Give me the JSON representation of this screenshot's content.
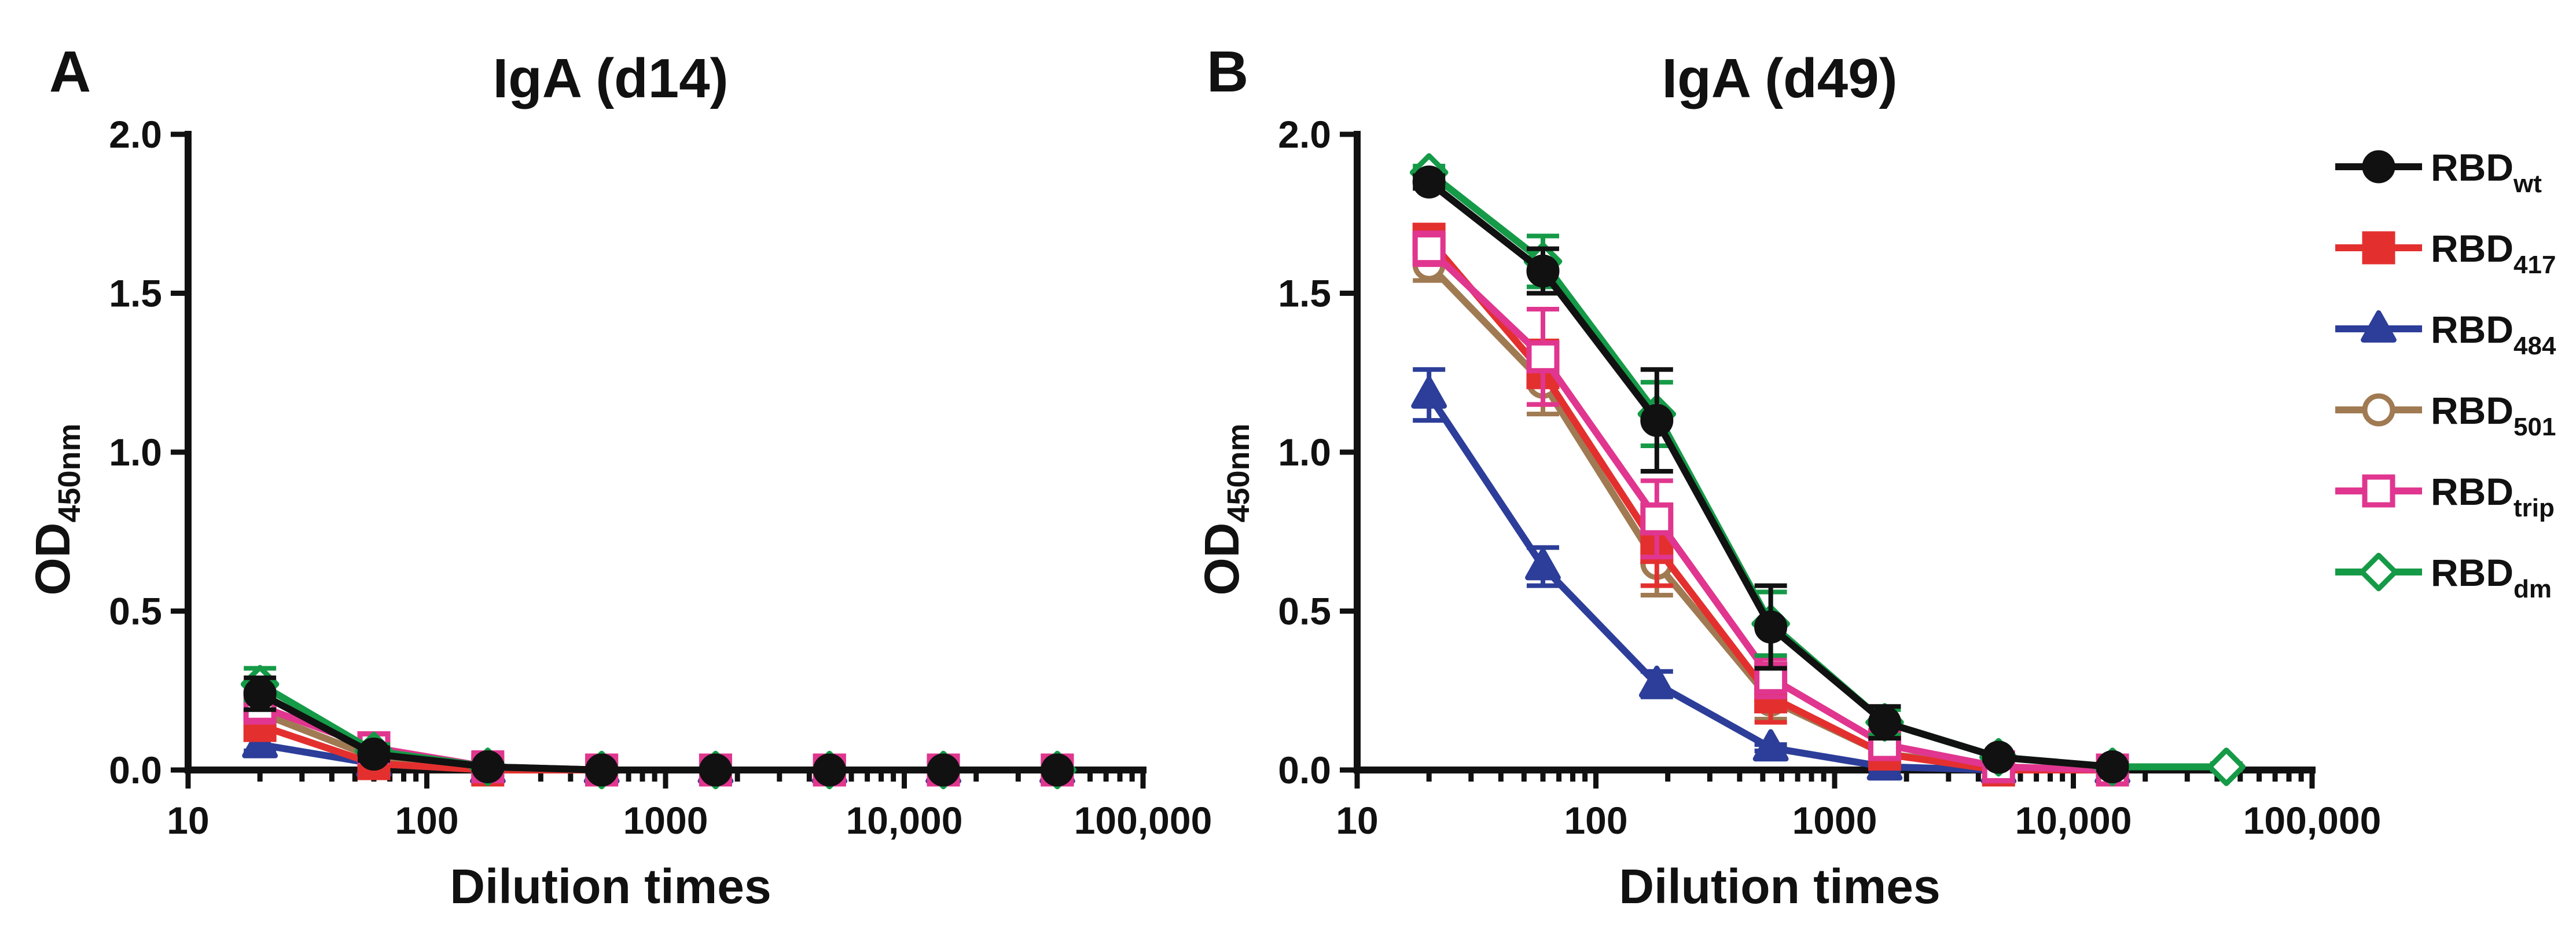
{
  "colors": {
    "RBD_wt": "#111111",
    "RBD_417": "#e3302f",
    "RBD_484": "#2c3e99",
    "RBD_501": "#a07a52",
    "RBD_trip": "#e0368f",
    "RBD_dm": "#159a47"
  },
  "legend": [
    {
      "key": "RBD_wt",
      "base": "RBD",
      "sub": "wt",
      "marker": "circle",
      "filled": true
    },
    {
      "key": "RBD_417",
      "base": "RBD",
      "sub": "417",
      "marker": "square",
      "filled": true
    },
    {
      "key": "RBD_484",
      "base": "RBD",
      "sub": "484",
      "marker": "triangle",
      "filled": true
    },
    {
      "key": "RBD_501",
      "base": "RBD",
      "sub": "501",
      "marker": "circle",
      "filled": false
    },
    {
      "key": "RBD_trip",
      "base": "RBD",
      "sub": "trip",
      "marker": "square",
      "filled": false
    },
    {
      "key": "RBD_dm",
      "base": "RBD",
      "sub": "dm",
      "marker": "diamond",
      "filled": false
    }
  ],
  "chart_data": [
    {
      "panel": "A",
      "type": "line",
      "title": "IgA (d14)",
      "xlabel": "Dilution times",
      "ylabel": {
        "base": "OD",
        "sub": "450nm"
      },
      "xscale": "log",
      "xlim": [
        10,
        100000
      ],
      "ylim": [
        0,
        2.0
      ],
      "xticks": [
        10,
        100,
        1000,
        10000,
        100000
      ],
      "xtick_labels": [
        "10",
        "100",
        "1000",
        "10,000",
        "100,000"
      ],
      "yticks": [
        0,
        0.5,
        1.0,
        1.5,
        2.0
      ],
      "ytick_labels": [
        "0.0",
        "0.5",
        "1.0",
        "1.5",
        "2.0"
      ],
      "series": [
        {
          "key": "RBD_484",
          "x": [
            20,
            60,
            180,
            540,
            1620,
            4860,
            14580,
            43740
          ],
          "y": [
            0.08,
            0.02,
            0.0,
            0.0,
            0.0,
            0.0,
            0.0,
            0.0
          ],
          "err": [
            0.02,
            0.01,
            0,
            0,
            0,
            0,
            0,
            0
          ]
        },
        {
          "key": "RBD_501",
          "x": [
            20,
            60,
            180,
            540,
            1620,
            4860,
            14580,
            43740
          ],
          "y": [
            0.18,
            0.04,
            0.0,
            0.0,
            0.0,
            0.0,
            0.0,
            0.0
          ],
          "err": [
            0.04,
            0.02,
            0.01,
            0,
            0,
            0.01,
            0,
            0.01
          ]
        },
        {
          "key": "RBD_417",
          "x": [
            20,
            60,
            180,
            540,
            1620,
            4860,
            14580,
            43740
          ],
          "y": [
            0.14,
            0.02,
            0.0,
            0.0,
            0.0,
            0.0,
            0.0,
            0.0
          ],
          "err": [
            0.03,
            0.01,
            0,
            0,
            0,
            0,
            0,
            0
          ]
        },
        {
          "key": "RBD_trip",
          "x": [
            20,
            60,
            180,
            540,
            1620,
            4860,
            14580,
            43740
          ],
          "y": [
            0.2,
            0.07,
            0.01,
            0.0,
            0.0,
            0.0,
            0.0,
            0.0
          ],
          "err": [
            0.05,
            0.02,
            0.01,
            0,
            0,
            0,
            0,
            0.01
          ]
        },
        {
          "key": "RBD_dm",
          "x": [
            20,
            60,
            180,
            540,
            1620,
            4860,
            14580,
            43740
          ],
          "y": [
            0.27,
            0.06,
            0.01,
            0.0,
            0.0,
            0.0,
            0.0,
            0.0
          ],
          "err": [
            0.05,
            0.02,
            0.01,
            0,
            0,
            0,
            0,
            0
          ]
        },
        {
          "key": "RBD_wt",
          "x": [
            20,
            60,
            180,
            540,
            1620,
            4860,
            14580,
            43740
          ],
          "y": [
            0.24,
            0.05,
            0.01,
            0.0,
            0.0,
            0.0,
            0.0,
            0.0
          ],
          "err": [
            0.05,
            0.02,
            0.01,
            0,
            0,
            0,
            0,
            0
          ]
        }
      ]
    },
    {
      "panel": "B",
      "type": "line",
      "title": "IgA (d49)",
      "xlabel": "Dilution times",
      "ylabel": {
        "base": "OD",
        "sub": "450nm"
      },
      "xscale": "log",
      "xlim": [
        10,
        100000
      ],
      "ylim": [
        0,
        2.0
      ],
      "xticks": [
        10,
        100,
        1000,
        10000,
        100000
      ],
      "xtick_labels": [
        "10",
        "100",
        "1000",
        "10,000",
        "100,000"
      ],
      "yticks": [
        0,
        0.5,
        1.0,
        1.5,
        2.0
      ],
      "ytick_labels": [
        "0.0",
        "0.5",
        "1.0",
        "1.5",
        "2.0"
      ],
      "series": [
        {
          "key": "RBD_484",
          "x": [
            20,
            60,
            180,
            540,
            1620,
            4860,
            14580
          ],
          "y": [
            1.18,
            0.64,
            0.27,
            0.07,
            0.01,
            0.0,
            0.0
          ],
          "err": [
            0.08,
            0.06,
            0.04,
            0.01,
            0.01,
            0,
            0
          ]
        },
        {
          "key": "RBD_501",
          "x": [
            20,
            60,
            180,
            540,
            1620,
            4860,
            14580
          ],
          "y": [
            1.59,
            1.22,
            0.65,
            0.22,
            0.05,
            0.01,
            0.0
          ],
          "err": [
            0.05,
            0.1,
            0.1,
            0.06,
            0.02,
            0.01,
            0
          ]
        },
        {
          "key": "RBD_417",
          "x": [
            20,
            60,
            180,
            540,
            1620,
            4860,
            14580
          ],
          "y": [
            1.67,
            1.25,
            0.7,
            0.23,
            0.05,
            0.0,
            0.0
          ],
          "err": [
            0.04,
            0.1,
            0.12,
            0.08,
            0.02,
            0.01,
            0
          ]
        },
        {
          "key": "RBD_trip",
          "x": [
            20,
            60,
            180,
            540,
            1620,
            4860,
            14580
          ],
          "y": [
            1.64,
            1.3,
            0.79,
            0.29,
            0.08,
            0.01,
            0.0
          ],
          "err": [
            0.05,
            0.15,
            0.12,
            0.06,
            0.02,
            0.01,
            0
          ]
        },
        {
          "key": "RBD_dm",
          "x": [
            20,
            60,
            180,
            540,
            1620,
            4860,
            14580,
            43740
          ],
          "y": [
            1.88,
            1.6,
            1.12,
            0.46,
            0.15,
            0.04,
            0.01,
            0.01
          ],
          "err": [
            0.02,
            0.08,
            0.1,
            0.1,
            0.04,
            0.01,
            0.01,
            0.01
          ]
        },
        {
          "key": "RBD_wt",
          "x": [
            20,
            60,
            180,
            540,
            1620,
            4860,
            14580
          ],
          "y": [
            1.85,
            1.57,
            1.1,
            0.45,
            0.15,
            0.04,
            0.01
          ],
          "err": [
            0.02,
            0.07,
            0.16,
            0.13,
            0.05,
            0.01,
            0.01
          ]
        }
      ]
    }
  ]
}
